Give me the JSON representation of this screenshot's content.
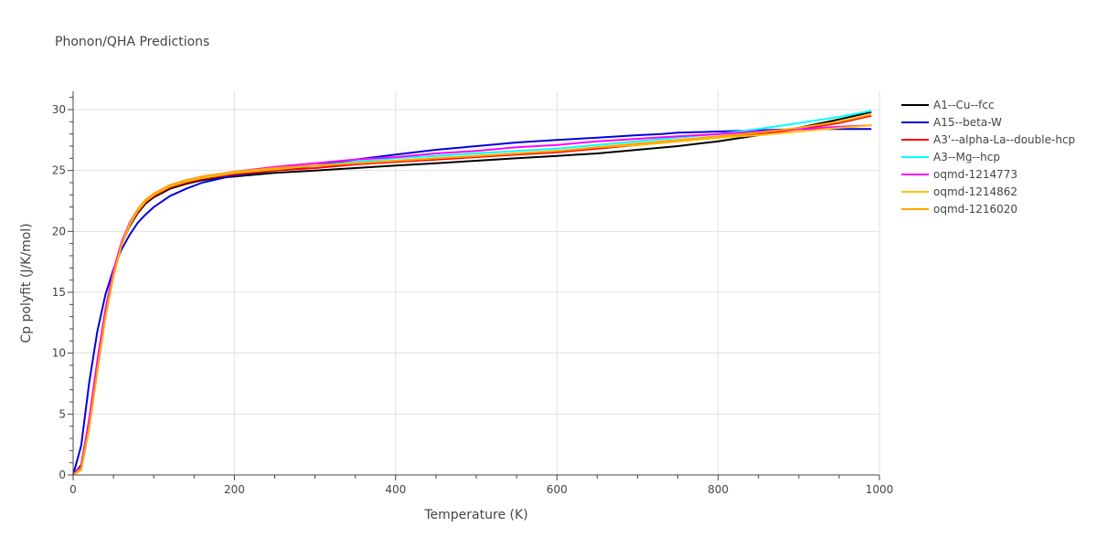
{
  "chart_data": {
    "type": "line",
    "title": "Phonon/QHA Predictions",
    "xlabel": "Temperature (K)",
    "ylabel": "Cp polyfit (J/K/mol)",
    "xlim": [
      0,
      1000
    ],
    "ylim": [
      0,
      31.5
    ],
    "xticks": [
      0,
      200,
      400,
      600,
      800,
      1000
    ],
    "yticks": [
      0,
      5,
      10,
      15,
      20,
      25,
      30
    ],
    "grid": true,
    "legend_position": "right",
    "series": [
      {
        "name": "A1--Cu--fcc",
        "color": "#000000",
        "x": [
          0,
          10,
          20,
          30,
          40,
          50,
          60,
          70,
          80,
          90,
          100,
          120,
          140,
          160,
          180,
          200,
          250,
          300,
          350,
          400,
          450,
          500,
          550,
          600,
          650,
          700,
          750,
          800,
          850,
          900,
          950,
          990
        ],
        "y": [
          0,
          0.8,
          4.5,
          9.2,
          13.4,
          16.6,
          18.9,
          20.4,
          21.5,
          22.3,
          22.8,
          23.5,
          23.9,
          24.2,
          24.4,
          24.5,
          24.8,
          25.0,
          25.2,
          25.4,
          25.6,
          25.8,
          26.0,
          26.2,
          26.4,
          26.7,
          27.0,
          27.4,
          27.9,
          28.5,
          29.2,
          29.8
        ]
      },
      {
        "name": "A15--beta-W",
        "color": "#0000dd",
        "x": [
          0,
          10,
          20,
          30,
          40,
          50,
          60,
          70,
          80,
          90,
          100,
          120,
          140,
          160,
          180,
          200,
          250,
          300,
          350,
          400,
          450,
          500,
          550,
          600,
          650,
          700,
          730,
          750,
          800,
          850,
          900,
          950,
          990
        ],
        "y": [
          0,
          2.4,
          7.6,
          11.8,
          14.8,
          16.9,
          18.5,
          19.7,
          20.7,
          21.4,
          22.0,
          22.9,
          23.5,
          24.0,
          24.3,
          24.6,
          25.0,
          25.4,
          25.9,
          26.3,
          26.7,
          27.0,
          27.3,
          27.5,
          27.7,
          27.9,
          28.0,
          28.1,
          28.2,
          28.3,
          28.4,
          28.4,
          28.4
        ]
      },
      {
        "name": "A3'--alpha-La--double-hcp",
        "color": "#ff0000",
        "x": [
          0,
          10,
          20,
          30,
          40,
          50,
          60,
          70,
          80,
          90,
          100,
          120,
          140,
          160,
          180,
          200,
          250,
          300,
          350,
          400,
          450,
          500,
          550,
          600,
          650,
          700,
          750,
          800,
          850,
          900,
          950,
          990
        ],
        "y": [
          0,
          0.6,
          4.2,
          8.9,
          13.2,
          16.5,
          18.9,
          20.5,
          21.6,
          22.4,
          22.9,
          23.6,
          24.0,
          24.3,
          24.5,
          24.7,
          25.0,
          25.2,
          25.5,
          25.7,
          25.9,
          26.1,
          26.3,
          26.5,
          26.8,
          27.1,
          27.4,
          27.7,
          28.0,
          28.4,
          28.9,
          29.5
        ]
      },
      {
        "name": "A3--Mg--hcp",
        "color": "#00ffff",
        "x": [
          0,
          10,
          20,
          30,
          40,
          50,
          60,
          70,
          80,
          90,
          100,
          120,
          140,
          160,
          180,
          200,
          250,
          300,
          350,
          400,
          450,
          500,
          550,
          600,
          650,
          700,
          750,
          800,
          850,
          900,
          950,
          990
        ],
        "y": [
          0,
          0.6,
          4.3,
          9.0,
          13.3,
          16.6,
          19.0,
          20.6,
          21.7,
          22.5,
          23.0,
          23.7,
          24.1,
          24.4,
          24.6,
          24.8,
          25.1,
          25.4,
          25.7,
          26.0,
          26.2,
          26.4,
          26.6,
          26.8,
          27.1,
          27.4,
          27.7,
          28.0,
          28.4,
          28.9,
          29.4,
          29.9
        ]
      },
      {
        "name": "oqmd-1214773",
        "color": "#ff00ff",
        "x": [
          0,
          10,
          20,
          30,
          40,
          50,
          60,
          70,
          80,
          90,
          100,
          120,
          140,
          160,
          180,
          200,
          250,
          300,
          350,
          400,
          450,
          500,
          550,
          600,
          650,
          700,
          750,
          800,
          850,
          900,
          950,
          990
        ],
        "y": [
          0,
          0.7,
          4.6,
          9.4,
          13.6,
          16.8,
          19.1,
          20.7,
          21.8,
          22.6,
          23.1,
          23.8,
          24.2,
          24.5,
          24.7,
          24.9,
          25.3,
          25.6,
          25.9,
          26.1,
          26.4,
          26.6,
          26.9,
          27.1,
          27.4,
          27.6,
          27.8,
          28.0,
          28.2,
          28.4,
          28.6,
          28.7
        ]
      },
      {
        "name": "oqmd-1214862",
        "color": "#ffc000",
        "x": [
          0,
          10,
          20,
          30,
          40,
          50,
          60,
          70,
          80,
          90,
          100,
          120,
          140,
          160,
          180,
          200,
          250,
          300,
          350,
          400,
          450,
          500,
          550,
          600,
          650,
          700,
          750,
          800,
          850,
          900,
          950,
          990
        ],
        "y": [
          0,
          0.4,
          3.8,
          8.5,
          12.9,
          16.3,
          18.8,
          20.5,
          21.7,
          22.5,
          23.0,
          23.7,
          24.1,
          24.4,
          24.6,
          24.8,
          25.1,
          25.4,
          25.6,
          25.8,
          26.0,
          26.2,
          26.4,
          26.6,
          26.9,
          27.1,
          27.4,
          27.7,
          27.9,
          28.2,
          28.5,
          28.7
        ]
      },
      {
        "name": "oqmd-1216020",
        "color": "#ffa500",
        "x": [
          0,
          10,
          20,
          30,
          40,
          50,
          60,
          70,
          80,
          90,
          100,
          120,
          140,
          160,
          180,
          200,
          250,
          300,
          350,
          400,
          450,
          500,
          550,
          600,
          650,
          700,
          750,
          800,
          850,
          900,
          950,
          990
        ],
        "y": [
          0,
          0.5,
          3.9,
          8.6,
          13.0,
          16.4,
          18.9,
          20.6,
          21.8,
          22.6,
          23.1,
          23.8,
          24.2,
          24.5,
          24.7,
          24.9,
          25.2,
          25.4,
          25.6,
          25.8,
          26.0,
          26.2,
          26.4,
          26.6,
          26.9,
          27.2,
          27.5,
          27.8,
          28.1,
          28.5,
          29.0,
          29.6
        ]
      }
    ]
  }
}
